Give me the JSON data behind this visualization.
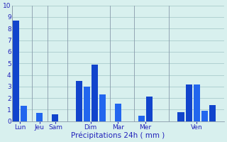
{
  "bars": [
    {
      "x": 1,
      "height": 8.7,
      "color": "#1144cc"
    },
    {
      "x": 2,
      "height": 1.35,
      "color": "#2266ee"
    },
    {
      "x": 4,
      "height": 0.7,
      "color": "#2266ee"
    },
    {
      "x": 6,
      "height": 0.6,
      "color": "#1144cc"
    },
    {
      "x": 9,
      "height": 3.5,
      "color": "#1144cc"
    },
    {
      "x": 10,
      "height": 3.0,
      "color": "#2266ee"
    },
    {
      "x": 11,
      "height": 4.9,
      "color": "#1144cc"
    },
    {
      "x": 12,
      "height": 2.3,
      "color": "#2266ee"
    },
    {
      "x": 14,
      "height": 1.5,
      "color": "#2266ee"
    },
    {
      "x": 17,
      "height": 0.5,
      "color": "#2266ee"
    },
    {
      "x": 18,
      "height": 2.15,
      "color": "#1144cc"
    },
    {
      "x": 22,
      "height": 0.8,
      "color": "#1144cc"
    },
    {
      "x": 23,
      "height": 3.2,
      "color": "#1144cc"
    },
    {
      "x": 24,
      "height": 3.15,
      "color": "#2266ee"
    },
    {
      "x": 25,
      "height": 0.9,
      "color": "#2266ee"
    },
    {
      "x": 26,
      "height": 1.4,
      "color": "#1144cc"
    }
  ],
  "day_labels": [
    {
      "x": 1.5,
      "label": "Lun"
    },
    {
      "x": 4,
      "label": "Jeu"
    },
    {
      "x": 6,
      "label": "Sam"
    },
    {
      "x": 10.5,
      "label": "Dim"
    },
    {
      "x": 14,
      "label": "Mar"
    },
    {
      "x": 17.5,
      "label": "Mer"
    },
    {
      "x": 24,
      "label": "Ven"
    }
  ],
  "day_lines": [
    0.5,
    3,
    5,
    7.5,
    13,
    16,
    20.5,
    27.5
  ],
  "ylabel_values": [
    0,
    1,
    2,
    3,
    4,
    5,
    6,
    7,
    8,
    9,
    10
  ],
  "ylim": [
    0,
    10
  ],
  "xlim": [
    0.5,
    27.5
  ],
  "xlabel": "Précipitations 24h ( mm )",
  "background_color": "#d8f0ee",
  "grid_color": "#aacccc",
  "bar_width": 0.82,
  "label_color": "#2222bb"
}
